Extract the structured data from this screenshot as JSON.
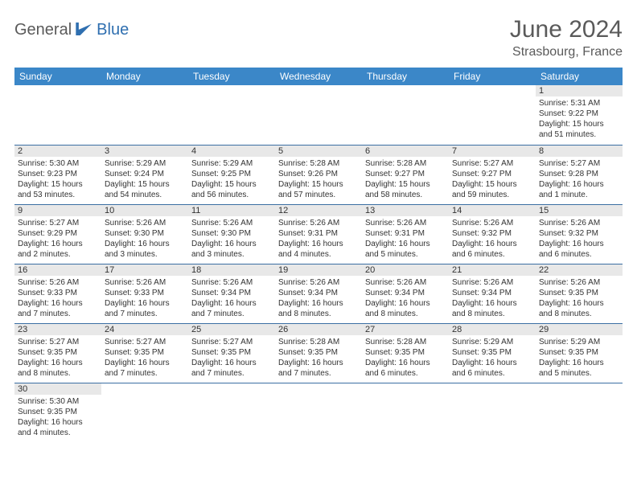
{
  "logo": {
    "part1": "General",
    "part2": "Blue"
  },
  "header": {
    "month_title": "June 2024",
    "location": "Strasbourg, France"
  },
  "colors": {
    "header_bg": "#3b87c8",
    "header_text": "#ffffff",
    "daynum_bg": "#e8e8e8",
    "border": "#3b6fa3",
    "logo_gray": "#5a5a5a",
    "logo_blue": "#2f6fb0"
  },
  "weekdays": [
    "Sunday",
    "Monday",
    "Tuesday",
    "Wednesday",
    "Thursday",
    "Friday",
    "Saturday"
  ],
  "weeks": [
    [
      null,
      null,
      null,
      null,
      null,
      null,
      {
        "n": "1",
        "sr": "Sunrise: 5:31 AM",
        "ss": "Sunset: 9:22 PM",
        "dl": "Daylight: 15 hours and 51 minutes."
      }
    ],
    [
      {
        "n": "2",
        "sr": "Sunrise: 5:30 AM",
        "ss": "Sunset: 9:23 PM",
        "dl": "Daylight: 15 hours and 53 minutes."
      },
      {
        "n": "3",
        "sr": "Sunrise: 5:29 AM",
        "ss": "Sunset: 9:24 PM",
        "dl": "Daylight: 15 hours and 54 minutes."
      },
      {
        "n": "4",
        "sr": "Sunrise: 5:29 AM",
        "ss": "Sunset: 9:25 PM",
        "dl": "Daylight: 15 hours and 56 minutes."
      },
      {
        "n": "5",
        "sr": "Sunrise: 5:28 AM",
        "ss": "Sunset: 9:26 PM",
        "dl": "Daylight: 15 hours and 57 minutes."
      },
      {
        "n": "6",
        "sr": "Sunrise: 5:28 AM",
        "ss": "Sunset: 9:27 PM",
        "dl": "Daylight: 15 hours and 58 minutes."
      },
      {
        "n": "7",
        "sr": "Sunrise: 5:27 AM",
        "ss": "Sunset: 9:27 PM",
        "dl": "Daylight: 15 hours and 59 minutes."
      },
      {
        "n": "8",
        "sr": "Sunrise: 5:27 AM",
        "ss": "Sunset: 9:28 PM",
        "dl": "Daylight: 16 hours and 1 minute."
      }
    ],
    [
      {
        "n": "9",
        "sr": "Sunrise: 5:27 AM",
        "ss": "Sunset: 9:29 PM",
        "dl": "Daylight: 16 hours and 2 minutes."
      },
      {
        "n": "10",
        "sr": "Sunrise: 5:26 AM",
        "ss": "Sunset: 9:30 PM",
        "dl": "Daylight: 16 hours and 3 minutes."
      },
      {
        "n": "11",
        "sr": "Sunrise: 5:26 AM",
        "ss": "Sunset: 9:30 PM",
        "dl": "Daylight: 16 hours and 3 minutes."
      },
      {
        "n": "12",
        "sr": "Sunrise: 5:26 AM",
        "ss": "Sunset: 9:31 PM",
        "dl": "Daylight: 16 hours and 4 minutes."
      },
      {
        "n": "13",
        "sr": "Sunrise: 5:26 AM",
        "ss": "Sunset: 9:31 PM",
        "dl": "Daylight: 16 hours and 5 minutes."
      },
      {
        "n": "14",
        "sr": "Sunrise: 5:26 AM",
        "ss": "Sunset: 9:32 PM",
        "dl": "Daylight: 16 hours and 6 minutes."
      },
      {
        "n": "15",
        "sr": "Sunrise: 5:26 AM",
        "ss": "Sunset: 9:32 PM",
        "dl": "Daylight: 16 hours and 6 minutes."
      }
    ],
    [
      {
        "n": "16",
        "sr": "Sunrise: 5:26 AM",
        "ss": "Sunset: 9:33 PM",
        "dl": "Daylight: 16 hours and 7 minutes."
      },
      {
        "n": "17",
        "sr": "Sunrise: 5:26 AM",
        "ss": "Sunset: 9:33 PM",
        "dl": "Daylight: 16 hours and 7 minutes."
      },
      {
        "n": "18",
        "sr": "Sunrise: 5:26 AM",
        "ss": "Sunset: 9:34 PM",
        "dl": "Daylight: 16 hours and 7 minutes."
      },
      {
        "n": "19",
        "sr": "Sunrise: 5:26 AM",
        "ss": "Sunset: 9:34 PM",
        "dl": "Daylight: 16 hours and 8 minutes."
      },
      {
        "n": "20",
        "sr": "Sunrise: 5:26 AM",
        "ss": "Sunset: 9:34 PM",
        "dl": "Daylight: 16 hours and 8 minutes."
      },
      {
        "n": "21",
        "sr": "Sunrise: 5:26 AM",
        "ss": "Sunset: 9:34 PM",
        "dl": "Daylight: 16 hours and 8 minutes."
      },
      {
        "n": "22",
        "sr": "Sunrise: 5:26 AM",
        "ss": "Sunset: 9:35 PM",
        "dl": "Daylight: 16 hours and 8 minutes."
      }
    ],
    [
      {
        "n": "23",
        "sr": "Sunrise: 5:27 AM",
        "ss": "Sunset: 9:35 PM",
        "dl": "Daylight: 16 hours and 8 minutes."
      },
      {
        "n": "24",
        "sr": "Sunrise: 5:27 AM",
        "ss": "Sunset: 9:35 PM",
        "dl": "Daylight: 16 hours and 7 minutes."
      },
      {
        "n": "25",
        "sr": "Sunrise: 5:27 AM",
        "ss": "Sunset: 9:35 PM",
        "dl": "Daylight: 16 hours and 7 minutes."
      },
      {
        "n": "26",
        "sr": "Sunrise: 5:28 AM",
        "ss": "Sunset: 9:35 PM",
        "dl": "Daylight: 16 hours and 7 minutes."
      },
      {
        "n": "27",
        "sr": "Sunrise: 5:28 AM",
        "ss": "Sunset: 9:35 PM",
        "dl": "Daylight: 16 hours and 6 minutes."
      },
      {
        "n": "28",
        "sr": "Sunrise: 5:29 AM",
        "ss": "Sunset: 9:35 PM",
        "dl": "Daylight: 16 hours and 6 minutes."
      },
      {
        "n": "29",
        "sr": "Sunrise: 5:29 AM",
        "ss": "Sunset: 9:35 PM",
        "dl": "Daylight: 16 hours and 5 minutes."
      }
    ],
    [
      {
        "n": "30",
        "sr": "Sunrise: 5:30 AM",
        "ss": "Sunset: 9:35 PM",
        "dl": "Daylight: 16 hours and 4 minutes."
      },
      null,
      null,
      null,
      null,
      null,
      null
    ]
  ]
}
